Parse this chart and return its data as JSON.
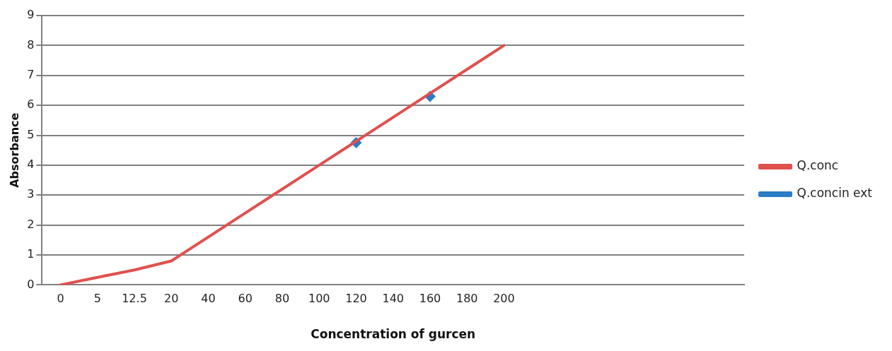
{
  "chart_data": {
    "type": "line",
    "xlabel": "Concentration of gurcen",
    "ylabel": "Absorbance",
    "categories": [
      "0",
      "5",
      "12.5",
      "20",
      "40",
      "60",
      "80",
      "100",
      "120",
      "140",
      "160",
      "180",
      "200",
      null,
      null,
      null,
      null,
      null,
      null
    ],
    "series": [
      {
        "name": "Q.conc",
        "color": "#e0504d",
        "marker": "none",
        "values": [
          0,
          0.25,
          0.5,
          0.8,
          1.6,
          2.4,
          3.2,
          4.0,
          4.8,
          5.6,
          6.4,
          7.2,
          8.0,
          null,
          null,
          null,
          null,
          null,
          null
        ]
      },
      {
        "name": "Q.concin ext",
        "type": "scatter",
        "color": "#2a7cc7",
        "marker": "diamond",
        "values": [
          null,
          null,
          null,
          null,
          null,
          null,
          null,
          null,
          4.75,
          null,
          6.3,
          null,
          null,
          null,
          null,
          null,
          null,
          null,
          null
        ]
      }
    ],
    "ylim": [
      0,
      9
    ],
    "yticks": [
      0,
      1,
      2,
      3,
      4,
      5,
      6,
      7,
      8,
      9
    ],
    "grid": "y",
    "legend": "right"
  }
}
